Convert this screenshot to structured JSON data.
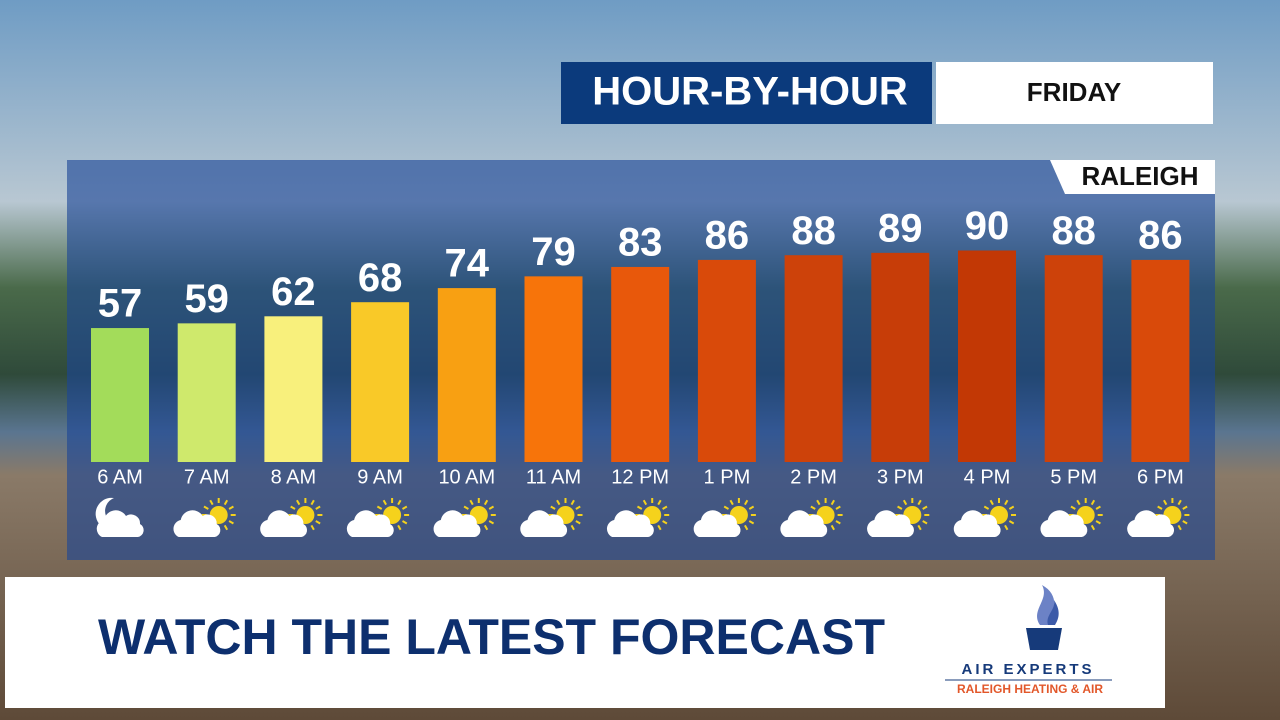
{
  "header": {
    "title": "HOUR-BY-HOUR",
    "day": "FRIDAY",
    "location": "RALEIGH"
  },
  "chart_data": {
    "type": "bar",
    "categories": [
      "6 AM",
      "7 AM",
      "8 AM",
      "9 AM",
      "10 AM",
      "11 AM",
      "12 PM",
      "1 PM",
      "2 PM",
      "3 PM",
      "4 PM",
      "5 PM",
      "6 PM"
    ],
    "values": [
      57,
      59,
      62,
      68,
      74,
      79,
      83,
      86,
      88,
      89,
      90,
      88,
      86
    ],
    "colors": [
      "#a3dc5a",
      "#cfe96c",
      "#f8f07c",
      "#f9c928",
      "#f8a012",
      "#f7740a",
      "#e8580b",
      "#d94a0a",
      "#cd420a",
      "#c73d08",
      "#c23805",
      "#cd420a",
      "#d94a0a"
    ]
  },
  "banner": {
    "text": "WATCH THE LATEST FORECAST",
    "sponsor": "AIR EXPERTS",
    "sponsor_tagline": "RALEIGH HEATING & AIR"
  }
}
